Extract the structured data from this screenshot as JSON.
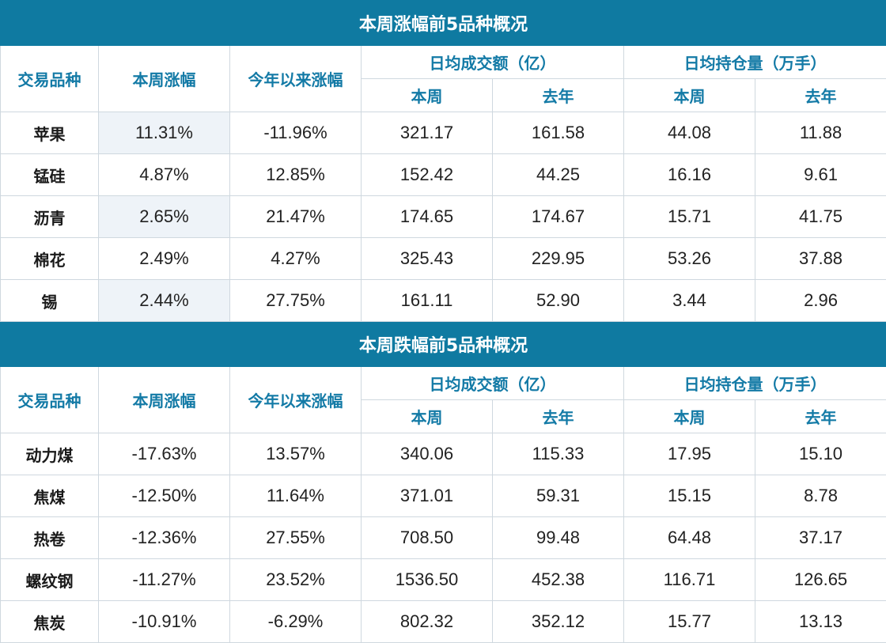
{
  "tables": [
    {
      "title": "本周涨幅前5品种概况",
      "headers": {
        "variety": "交易品种",
        "weekly_change": "本周涨幅",
        "ytd_change": "今年以来涨幅",
        "avg_volume": "日均成交额（亿）",
        "avg_position": "日均持仓量（万手）",
        "this_week": "本周",
        "last_year": "去年"
      },
      "rows": [
        {
          "name": "苹果",
          "weekly": "11.31%",
          "ytd": "-11.96%",
          "vol_week": "321.17",
          "vol_last": "161.58",
          "pos_week": "44.08",
          "pos_last": "11.88"
        },
        {
          "name": "锰硅",
          "weekly": "4.87%",
          "ytd": "12.85%",
          "vol_week": "152.42",
          "vol_last": "44.25",
          "pos_week": "16.16",
          "pos_last": "9.61"
        },
        {
          "name": "沥青",
          "weekly": "2.65%",
          "ytd": "21.47%",
          "vol_week": "174.65",
          "vol_last": "174.67",
          "pos_week": "15.71",
          "pos_last": "41.75"
        },
        {
          "name": "棉花",
          "weekly": "2.49%",
          "ytd": "4.27%",
          "vol_week": "325.43",
          "vol_last": "229.95",
          "pos_week": "53.26",
          "pos_last": "37.88"
        },
        {
          "name": "锡",
          "weekly": "2.44%",
          "ytd": "27.75%",
          "vol_week": "161.11",
          "vol_last": "52.90",
          "pos_week": "3.44",
          "pos_last": "2.96"
        }
      ]
    },
    {
      "title": "本周跌幅前5品种概况",
      "headers": {
        "variety": "交易品种",
        "weekly_change": "本周涨幅",
        "ytd_change": "今年以来涨幅",
        "avg_volume": "日均成交额（亿）",
        "avg_position": "日均持仓量（万手）",
        "this_week": "本周",
        "last_year": "去年"
      },
      "rows": [
        {
          "name": "动力煤",
          "weekly": "-17.63%",
          "ytd": "13.57%",
          "vol_week": "340.06",
          "vol_last": "115.33",
          "pos_week": "17.95",
          "pos_last": "15.10"
        },
        {
          "name": "焦煤",
          "weekly": "-12.50%",
          "ytd": "11.64%",
          "vol_week": "371.01",
          "vol_last": "59.31",
          "pos_week": "15.15",
          "pos_last": "8.78"
        },
        {
          "name": "热卷",
          "weekly": "-12.36%",
          "ytd": "27.55%",
          "vol_week": "708.50",
          "vol_last": "99.48",
          "pos_week": "64.48",
          "pos_last": "37.17"
        },
        {
          "name": "螺纹钢",
          "weekly": "-11.27%",
          "ytd": "23.52%",
          "vol_week": "1536.50",
          "vol_last": "452.38",
          "pos_week": "116.71",
          "pos_last": "126.65"
        },
        {
          "name": "焦炭",
          "weekly": "-10.91%",
          "ytd": "-6.29%",
          "vol_week": "802.32",
          "vol_last": "352.12",
          "pos_week": "15.77",
          "pos_last": "13.13"
        }
      ]
    }
  ],
  "colors": {
    "title_bg": "#0f7aa1",
    "header_text": "#137aa6",
    "shade": "#eef3f8"
  }
}
